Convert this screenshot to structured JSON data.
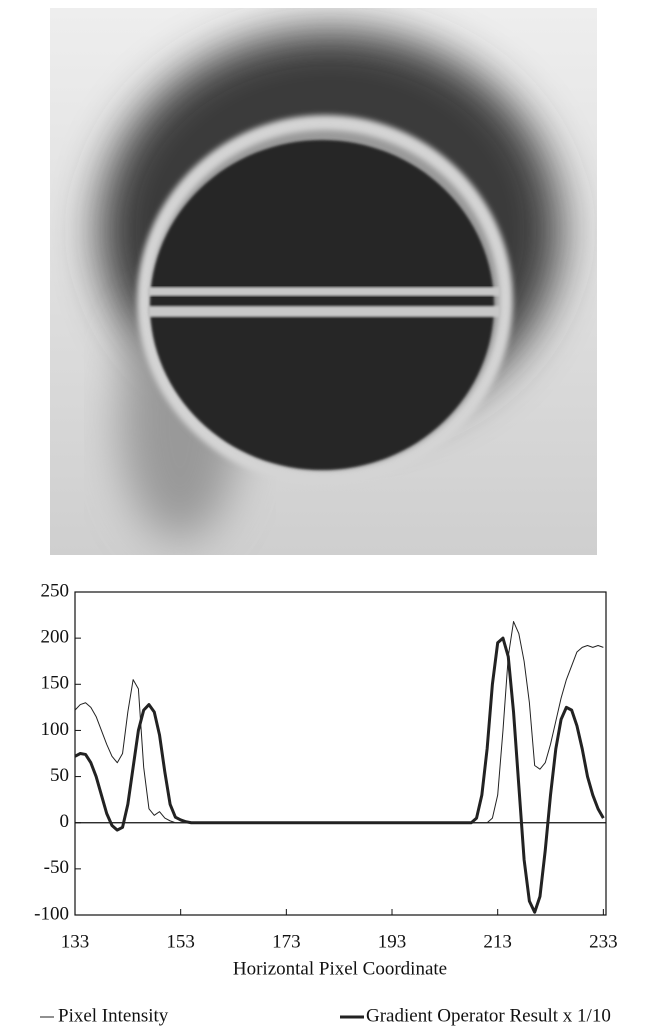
{
  "chart_data": {
    "type": "line",
    "xlabel": "Horizontal Pixel Coordinate",
    "x": [
      133,
      134,
      135,
      136,
      137,
      138,
      139,
      140,
      141,
      142,
      143,
      144,
      145,
      146,
      147,
      148,
      149,
      150,
      151,
      152,
      153,
      154,
      155,
      156,
      157,
      158,
      159,
      160,
      161,
      162,
      163,
      164,
      165,
      166,
      167,
      168,
      169,
      170,
      171,
      172,
      173,
      174,
      175,
      176,
      177,
      178,
      179,
      180,
      181,
      182,
      183,
      184,
      185,
      186,
      187,
      188,
      189,
      190,
      191,
      192,
      193,
      194,
      195,
      196,
      197,
      198,
      199,
      200,
      201,
      202,
      203,
      204,
      205,
      206,
      207,
      208,
      209,
      210,
      211,
      212,
      213,
      214,
      215,
      216,
      217,
      218,
      219,
      220,
      221,
      222,
      223,
      224,
      225,
      226,
      227,
      228,
      229,
      230,
      231,
      232,
      233
    ],
    "series": [
      {
        "name": "Pixel Intensity",
        "color": "#222",
        "width": 1,
        "values": [
          122,
          128,
          130,
          125,
          115,
          100,
          85,
          72,
          65,
          75,
          120,
          155,
          145,
          60,
          15,
          8,
          12,
          5,
          2,
          0,
          0,
          0,
          0,
          0,
          0,
          0,
          0,
          0,
          0,
          0,
          0,
          0,
          0,
          0,
          0,
          0,
          0,
          0,
          0,
          0,
          0,
          0,
          0,
          0,
          0,
          0,
          0,
          0,
          0,
          0,
          0,
          0,
          0,
          0,
          0,
          0,
          0,
          0,
          0,
          0,
          0,
          0,
          0,
          0,
          0,
          0,
          0,
          0,
          0,
          0,
          0,
          0,
          0,
          0,
          0,
          0,
          0,
          0,
          0,
          5,
          30,
          100,
          180,
          218,
          205,
          175,
          130,
          62,
          58,
          65,
          85,
          110,
          135,
          155,
          170,
          185,
          190,
          192,
          190,
          192,
          190
        ]
      },
      {
        "name": "Gradient Operator Result x 1/10",
        "color": "#222",
        "width": 3,
        "values": [
          72,
          75,
          74,
          65,
          50,
          30,
          10,
          -3,
          -8,
          -5,
          20,
          60,
          100,
          122,
          128,
          120,
          95,
          55,
          20,
          6,
          3,
          1,
          0,
          0,
          0,
          0,
          0,
          0,
          0,
          0,
          0,
          0,
          0,
          0,
          0,
          0,
          0,
          0,
          0,
          0,
          0,
          0,
          0,
          0,
          0,
          0,
          0,
          0,
          0,
          0,
          0,
          0,
          0,
          0,
          0,
          0,
          0,
          0,
          0,
          0,
          0,
          0,
          0,
          0,
          0,
          0,
          0,
          0,
          0,
          0,
          0,
          0,
          0,
          0,
          0,
          0,
          5,
          30,
          80,
          150,
          195,
          200,
          180,
          120,
          40,
          -40,
          -85,
          -97,
          -80,
          -30,
          30,
          80,
          112,
          125,
          122,
          105,
          80,
          50,
          30,
          15,
          5
        ]
      }
    ],
    "xlim": [
      133,
      233.5
    ],
    "xticks": [
      133,
      153,
      173,
      193,
      213,
      233
    ],
    "ylim": [
      -100,
      250
    ],
    "yticks": [
      -100,
      -50,
      0,
      50,
      100,
      150,
      200,
      250
    ]
  }
}
